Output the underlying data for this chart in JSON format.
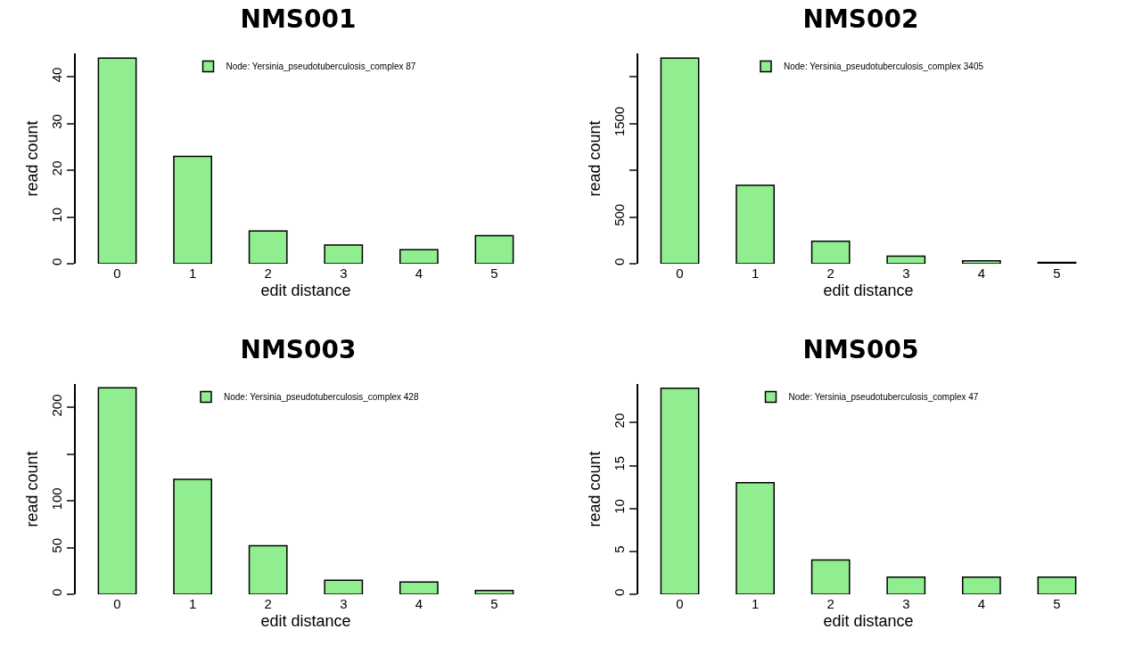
{
  "chart_data": [
    {
      "type": "bar",
      "title": "NMS001",
      "xlabel": "edit distance",
      "ylabel": "read count",
      "categories": [
        "0",
        "1",
        "2",
        "3",
        "4",
        "5"
      ],
      "series": [
        {
          "name": "Node: Yersinia_pseudotuberculosis_complex 87",
          "color": "#90ee90",
          "values": [
            44,
            23,
            7,
            4,
            3,
            6
          ]
        }
      ],
      "ylim": [
        0,
        45
      ],
      "yticks": [
        0,
        10,
        20,
        30,
        40
      ],
      "legend": "top",
      "grid": false
    },
    {
      "type": "bar",
      "title": "NMS002",
      "xlabel": "edit distance",
      "ylabel": "read count",
      "categories": [
        "0",
        "1",
        "2",
        "3",
        "4",
        "5"
      ],
      "series": [
        {
          "name": "Node: Yersinia_pseudotuberculosis_complex 3405",
          "color": "#90ee90",
          "values": [
            2200,
            840,
            240,
            80,
            30,
            15
          ]
        }
      ],
      "ylim": [
        0,
        2250
      ],
      "yticks": [
        0,
        500,
        {
          "value": 1000,
          "label": null
        },
        1500,
        {
          "value": 2000,
          "label": null
        }
      ],
      "legend": "top",
      "grid": false
    },
    {
      "type": "bar",
      "title": "NMS003",
      "xlabel": "edit distance",
      "ylabel": "read count",
      "categories": [
        "0",
        "1",
        "2",
        "3",
        "4",
        "5"
      ],
      "series": [
        {
          "name": "Node: Yersinia_pseudotuberculosis_complex 428",
          "color": "#90ee90",
          "values": [
            221,
            123,
            52,
            15,
            13,
            4
          ]
        }
      ],
      "ylim": [
        0,
        225
      ],
      "yticks": [
        0,
        50,
        100,
        {
          "value": 150,
          "label": null
        },
        200
      ],
      "legend": "top",
      "grid": false
    },
    {
      "type": "bar",
      "title": "NMS005",
      "xlabel": "edit distance",
      "ylabel": "read count",
      "categories": [
        "0",
        "1",
        "2",
        "3",
        "4",
        "5"
      ],
      "series": [
        {
          "name": "Node: Yersinia_pseudotuberculosis_complex 47",
          "color": "#90ee90",
          "values": [
            24,
            13,
            4,
            2,
            2,
            2
          ]
        }
      ],
      "ylim": [
        0,
        24.5
      ],
      "yticks": [
        0,
        5,
        10,
        15,
        20
      ],
      "legend": "top",
      "grid": false
    }
  ]
}
